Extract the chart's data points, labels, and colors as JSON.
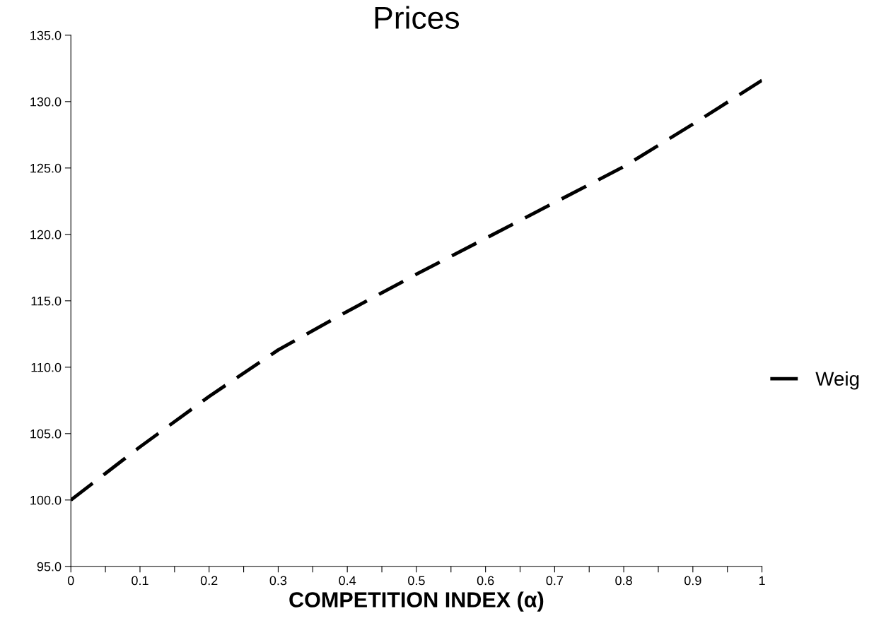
{
  "chart_data": {
    "type": "line",
    "title": "Prices",
    "xlabel": "COMPETITION INDEX (α)",
    "x": [
      0,
      0.05,
      0.1,
      0.2,
      0.3,
      0.4,
      0.5,
      0.6,
      0.7,
      0.8,
      0.9,
      1
    ],
    "series": [
      {
        "name": "Weig",
        "color": "#000000",
        "values": [
          100.0,
          102.0,
          104.0,
          107.8,
          111.3,
          114.2,
          117.0,
          119.7,
          122.4,
          125.1,
          128.3,
          131.6
        ]
      }
    ],
    "xlim": [
      0,
      1
    ],
    "xticks": [
      0,
      {
        "value": 0.05,
        "label": null
      },
      0.1,
      {
        "value": 0.15,
        "label": null
      },
      0.2,
      {
        "value": 0.25,
        "label": null
      },
      0.3,
      {
        "value": 0.35,
        "label": null
      },
      0.4,
      {
        "value": 0.45,
        "label": null
      },
      0.5,
      {
        "value": 0.55,
        "label": null
      },
      0.6,
      {
        "value": 0.65,
        "label": null
      },
      0.7,
      {
        "value": 0.75,
        "label": null
      },
      0.8,
      {
        "value": 0.85,
        "label": null
      },
      0.9,
      {
        "value": 0.95,
        "label": null
      },
      1
    ],
    "ylim": [
      95,
      135
    ],
    "yticks": [
      {
        "value": 95,
        "label": "95.0"
      },
      {
        "value": 100,
        "label": "100.0"
      },
      {
        "value": 105,
        "label": "105.0"
      },
      {
        "value": 110,
        "label": "110.0"
      },
      {
        "value": 115,
        "label": "115.0"
      },
      {
        "value": 120,
        "label": "120.0"
      },
      {
        "value": 125,
        "label": "125.0"
      },
      {
        "value": 130,
        "label": "130.0"
      },
      {
        "value": 135,
        "label": "135.0"
      }
    ],
    "grid": false,
    "legend": "right",
    "line_style": "dashed",
    "marker": "none"
  }
}
